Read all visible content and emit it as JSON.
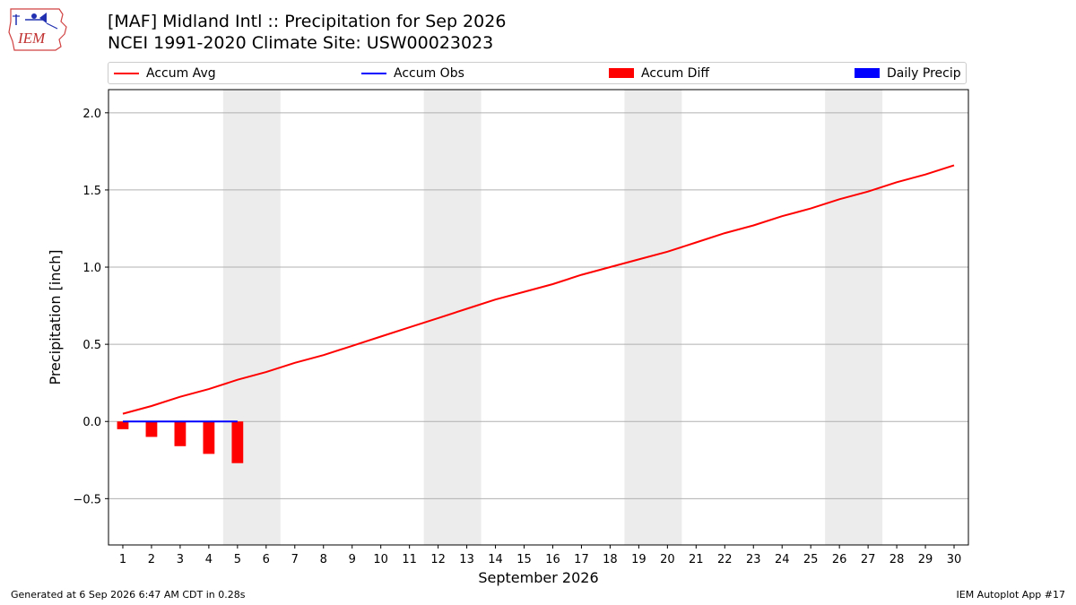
{
  "logo": {
    "text": "IEM",
    "icon": "iem-iowa-logo-icon"
  },
  "header": {
    "title_line1": "[MAF] Midland Intl :: Precipitation for Sep 2026",
    "title_line2": "NCEI 1991-2020 Climate Site: USW00023023"
  },
  "legend": [
    {
      "label": "Accum Avg",
      "color": "#ff0000",
      "kind": "line"
    },
    {
      "label": "Accum Obs",
      "color": "#0000ff",
      "kind": "line"
    },
    {
      "label": "Accum Diff",
      "color": "#ff0000",
      "kind": "box"
    },
    {
      "label": "Daily Precip",
      "color": "#0000ff",
      "kind": "box"
    }
  ],
  "footer": {
    "left": "Generated at 6 Sep 2026 6:47 AM CDT in 0.28s",
    "right": "IEM Autoplot App #17"
  },
  "chart_data": {
    "type": "line",
    "title": "[MAF] Midland Intl :: Precipitation for Sep 2026",
    "subtitle": "NCEI 1991-2020 Climate Site: USW00023023",
    "xlabel": "September 2026",
    "ylabel": "Precipitation [inch]",
    "xlim": [
      0.5,
      30.5
    ],
    "ylim": [
      -0.8,
      2.15
    ],
    "yticks": [
      -0.5,
      0.0,
      0.5,
      1.0,
      1.5,
      2.0
    ],
    "ytick_labels": [
      "−0.5",
      "0.0",
      "0.5",
      "1.0",
      "1.5",
      "2.0"
    ],
    "xticks": [
      1,
      2,
      3,
      4,
      5,
      6,
      7,
      8,
      9,
      10,
      11,
      12,
      13,
      14,
      15,
      16,
      17,
      18,
      19,
      20,
      21,
      22,
      23,
      24,
      25,
      26,
      27,
      28,
      29,
      30
    ],
    "xtick_labels": [
      "1",
      "2",
      "3",
      "4",
      "5",
      "6",
      "7",
      "8",
      "9",
      "10",
      "11",
      "12",
      "13",
      "14",
      "15",
      "16",
      "17",
      "18",
      "19",
      "20",
      "21",
      "22",
      "23",
      "24",
      "25",
      "26",
      "27",
      "28",
      "29",
      "30"
    ],
    "weekend_shading": [
      [
        4.5,
        6.5
      ],
      [
        11.5,
        13.5
      ],
      [
        18.5,
        20.5
      ],
      [
        25.5,
        27.5
      ]
    ],
    "grid": "horizontal",
    "legend_position": "top",
    "series": [
      {
        "name": "Accum Avg",
        "kind": "line",
        "color": "#ff0000",
        "x": [
          1,
          2,
          3,
          4,
          5,
          6,
          7,
          8,
          9,
          10,
          11,
          12,
          13,
          14,
          15,
          16,
          17,
          18,
          19,
          20,
          21,
          22,
          23,
          24,
          25,
          26,
          27,
          28,
          29,
          30
        ],
        "values": [
          0.05,
          0.1,
          0.16,
          0.21,
          0.27,
          0.32,
          0.38,
          0.43,
          0.49,
          0.55,
          0.61,
          0.67,
          0.73,
          0.79,
          0.84,
          0.89,
          0.95,
          1.0,
          1.05,
          1.1,
          1.16,
          1.22,
          1.27,
          1.33,
          1.38,
          1.44,
          1.49,
          1.55,
          1.6,
          1.66
        ]
      },
      {
        "name": "Accum Obs",
        "kind": "line",
        "color": "#0000ff",
        "x": [
          1,
          2,
          3,
          4,
          5
        ],
        "values": [
          0.0,
          0.0,
          0.0,
          0.0,
          0.0
        ]
      },
      {
        "name": "Accum Diff",
        "kind": "bar",
        "color": "#ff0000",
        "x": [
          1,
          2,
          3,
          4,
          5
        ],
        "values": [
          -0.05,
          -0.1,
          -0.16,
          -0.21,
          -0.27
        ]
      },
      {
        "name": "Daily Precip",
        "kind": "bar",
        "color": "#0000ff",
        "x": [
          1,
          2,
          3,
          4,
          5
        ],
        "values": [
          0.0,
          0.0,
          0.0,
          0.0,
          0.0
        ]
      }
    ]
  }
}
